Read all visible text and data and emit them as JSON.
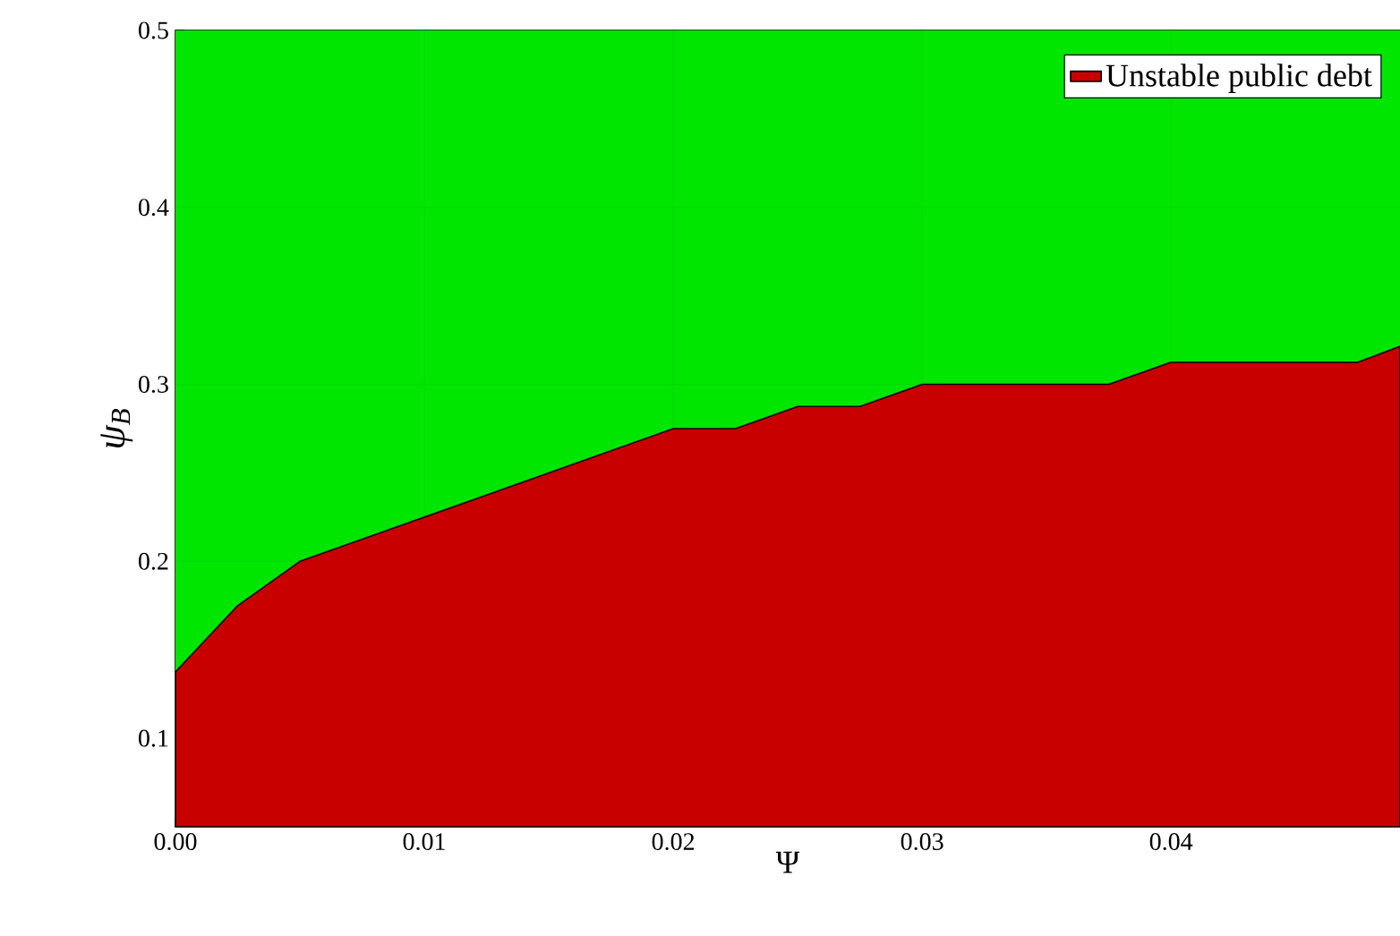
{
  "chart_data": {
    "type": "area",
    "xlabel": "Ψ",
    "ylabel": "ψ$_{B}$",
    "x": [
      0,
      0.0025,
      0.005,
      0.02,
      0.0225,
      0.025,
      0.0275,
      0.03,
      0.0375,
      0.04,
      0.0475,
      0.0492
    ],
    "series": [
      {
        "name": "Unstable public debt",
        "color": "#c80000",
        "values": [
          0.1375,
          0.175,
          0.2,
          0.275,
          0.275,
          0.2875,
          0.2875,
          0.3,
          0.3,
          0.3125,
          0.3125,
          0.3215
        ]
      }
    ],
    "xlim": [
      0,
      0.0492
    ],
    "ylim": [
      0.05,
      0.5
    ],
    "xticks": [
      {
        "value": 0,
        "label": "0.00"
      },
      {
        "value": 0.01,
        "label": "0.01"
      },
      {
        "value": 0.02,
        "label": "0.02"
      },
      {
        "value": 0.03,
        "label": "0.03"
      },
      {
        "value": 0.04,
        "label": "0.04"
      }
    ],
    "yticks": [
      0.1,
      0.2,
      0.3,
      0.4,
      0.5
    ],
    "bands": [
      {
        "axis": "x",
        "from": 0,
        "to": 0.0492,
        "color": "#00e600"
      }
    ],
    "grid": true,
    "legend": "top right"
  }
}
